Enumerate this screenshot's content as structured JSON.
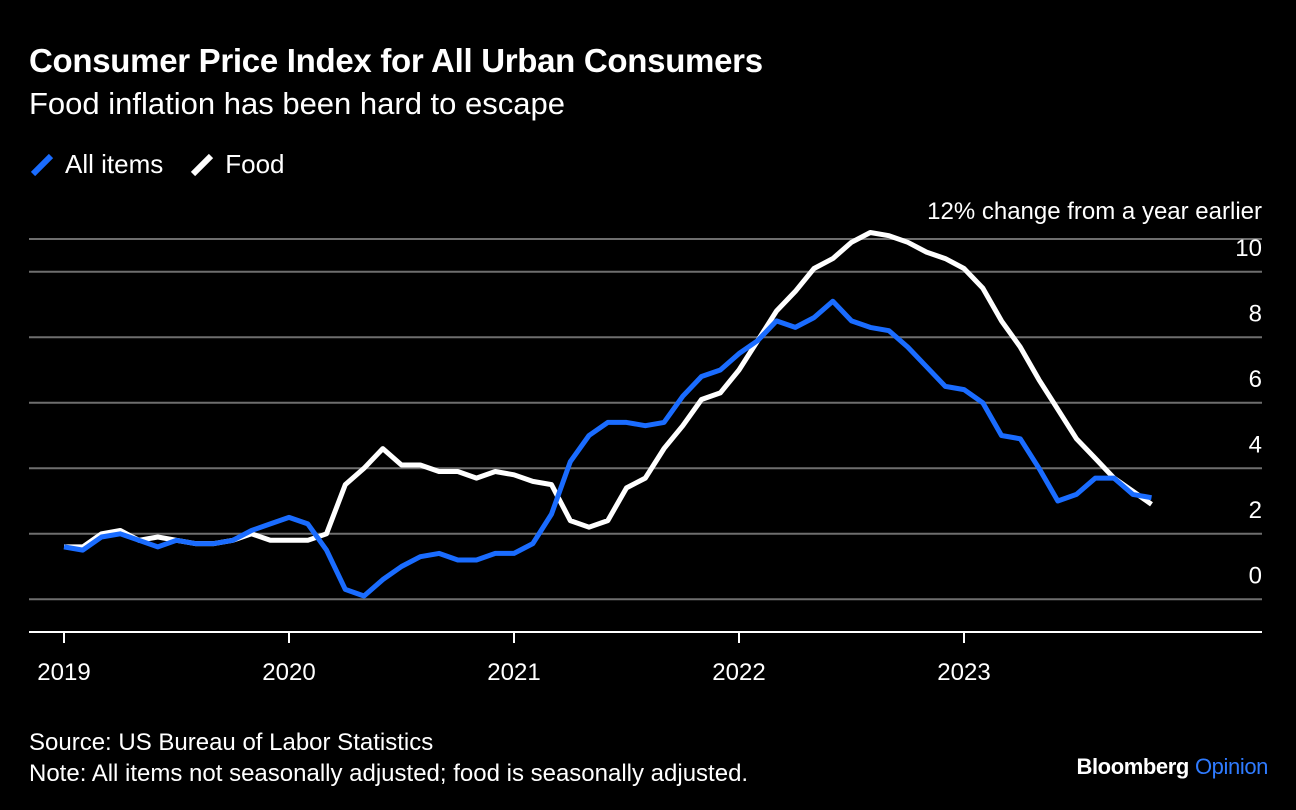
{
  "chart_data": {
    "type": "line",
    "title": "Consumer Price Index for All Urban Consumers",
    "subtitle": "Food inflation has been hard to escape",
    "ylabel": "12% change from a year earlier",
    "ylim": [
      -1,
      11
    ],
    "yticks": [
      0,
      2,
      4,
      6,
      8,
      10
    ],
    "grid": true,
    "legend_position": "top-left",
    "x_start": "2019-01",
    "x_end": "2023-11",
    "x_tick_labels": [
      "2019",
      "2020",
      "2021",
      "2022",
      "2023"
    ],
    "x_tick_dates": [
      "2019-01",
      "2020-01",
      "2021-01",
      "2022-01",
      "2023-01"
    ],
    "series": [
      {
        "name": "All items",
        "color": "#1a6cff",
        "values": [
          1.6,
          1.5,
          1.9,
          2.0,
          1.8,
          1.6,
          1.8,
          1.7,
          1.7,
          1.8,
          2.1,
          2.3,
          2.5,
          2.3,
          1.5,
          0.3,
          0.1,
          0.6,
          1.0,
          1.3,
          1.4,
          1.2,
          1.2,
          1.4,
          1.4,
          1.7,
          2.6,
          4.2,
          5.0,
          5.4,
          5.4,
          5.3,
          5.4,
          6.2,
          6.8,
          7.0,
          7.5,
          7.9,
          8.5,
          8.3,
          8.6,
          9.1,
          8.5,
          8.3,
          8.2,
          7.7,
          7.1,
          6.5,
          6.4,
          6.0,
          5.0,
          4.9,
          4.0,
          3.0,
          3.2,
          3.7,
          3.7,
          3.2,
          3.1
        ]
      },
      {
        "name": "Food",
        "color": "#ffffff",
        "values": [
          1.6,
          1.6,
          2.0,
          2.1,
          1.8,
          1.9,
          1.8,
          1.7,
          1.7,
          1.8,
          2.0,
          1.8,
          1.8,
          1.8,
          2.0,
          3.5,
          4.0,
          4.6,
          4.1,
          4.1,
          3.9,
          3.9,
          3.7,
          3.9,
          3.8,
          3.6,
          3.5,
          2.4,
          2.2,
          2.4,
          3.4,
          3.7,
          4.6,
          5.3,
          6.1,
          6.3,
          7.0,
          7.9,
          8.8,
          9.4,
          10.1,
          10.4,
          10.9,
          11.2,
          11.1,
          10.9,
          10.6,
          10.4,
          10.1,
          9.5,
          8.5,
          7.7,
          6.7,
          5.8,
          4.9,
          4.3,
          3.7,
          3.3,
          2.9
        ]
      }
    ]
  },
  "legend": {
    "all_items": "All items",
    "food": "Food"
  },
  "footer": {
    "source": "Source: US Bureau of Labor Statistics",
    "note": "Note: All items not seasonally adjusted; food is seasonally adjusted."
  },
  "brand": {
    "name": "Bloomberg",
    "section": "Opinion"
  }
}
